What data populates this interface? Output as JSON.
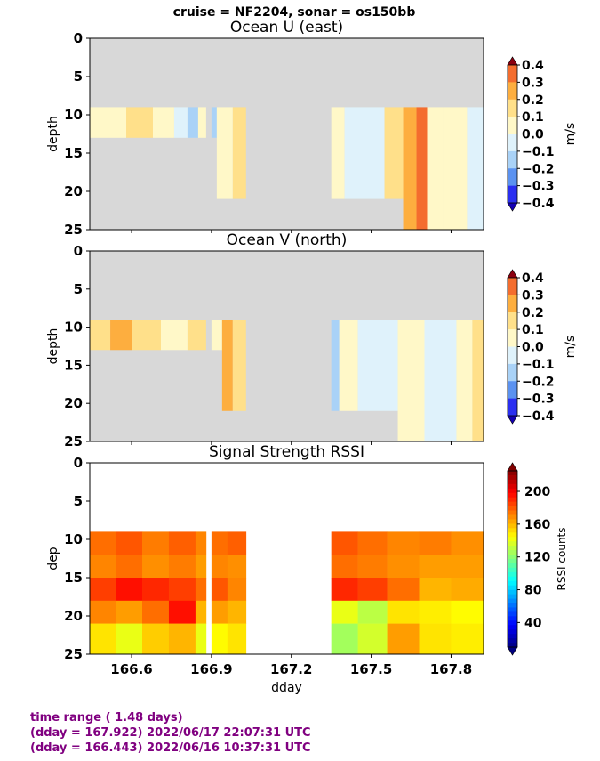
{
  "suptitle": "cruise = NF2204,  sonar = os150bb",
  "chart_data": [
    {
      "type": "heatmap",
      "title": "Ocean U (east)",
      "xlabel": "",
      "ylabel": "depth",
      "xlim": [
        166.443,
        167.922
      ],
      "ylim": [
        25,
        0
      ],
      "yticks": [
        "0",
        "5",
        "10",
        "15",
        "20",
        "25"
      ],
      "xticks": [
        "166.6",
        "166.9",
        "167.2",
        "167.5",
        "167.8"
      ],
      "colorbar": {
        "label": "m/s",
        "ticks": [
          "0.4",
          "0.3",
          "0.2",
          "0.1",
          "0.0",
          "−0.1",
          "−0.2",
          "−0.3",
          "−0.4"
        ],
        "colors": [
          "#d7191c",
          "#f46d2e",
          "#fdae3f",
          "#ffe08a",
          "#fff8c8",
          "#dff2fb",
          "#a9d2f7",
          "#5b92f0",
          "#2a2ff0",
          "#1400e6"
        ]
      },
      "nodata_color": "#d8d8d8",
      "columns": [
        {
          "x0": 166.443,
          "x1": 166.51,
          "top": 9,
          "bottom": 13,
          "value": 0.05
        },
        {
          "x0": 166.51,
          "x1": 166.58,
          "top": 9,
          "bottom": 13,
          "value": 0.08
        },
        {
          "x0": 166.58,
          "x1": 166.68,
          "top": 9,
          "bottom": 13,
          "value": 0.15
        },
        {
          "x0": 166.68,
          "x1": 166.76,
          "top": 9,
          "bottom": 13,
          "value": 0.1
        },
        {
          "x0": 166.76,
          "x1": 166.81,
          "top": 9,
          "bottom": 13,
          "value": -0.02
        },
        {
          "x0": 166.81,
          "x1": 166.85,
          "top": 9,
          "bottom": 13,
          "value": -0.15
        },
        {
          "x0": 166.85,
          "x1": 166.88,
          "top": 9,
          "bottom": 13,
          "value": 0.03
        },
        {
          "x0": 166.9,
          "x1": 166.92,
          "top": 9,
          "bottom": 13,
          "value": -0.15
        },
        {
          "x0": 166.92,
          "x1": 166.98,
          "top": 9,
          "bottom": 21,
          "value": 0.02
        },
        {
          "x0": 166.98,
          "x1": 167.03,
          "top": 9,
          "bottom": 21,
          "value": 0.15
        },
        {
          "x0": 167.35,
          "x1": 167.4,
          "top": 9,
          "bottom": 21,
          "value": 0.08
        },
        {
          "x0": 167.4,
          "x1": 167.55,
          "top": 9,
          "bottom": 21,
          "value": -0.05
        },
        {
          "x0": 167.55,
          "x1": 167.62,
          "top": 9,
          "bottom": 21,
          "value": 0.12
        },
        {
          "x0": 167.62,
          "x1": 167.67,
          "top": 9,
          "bottom": 25,
          "value": 0.22
        },
        {
          "x0": 167.67,
          "x1": 167.71,
          "top": 9,
          "bottom": 25,
          "value": 0.32
        },
        {
          "x0": 167.71,
          "x1": 167.77,
          "top": 9,
          "bottom": 25,
          "value": 0.08
        },
        {
          "x0": 167.77,
          "x1": 167.86,
          "top": 9,
          "bottom": 25,
          "value": 0.02
        },
        {
          "x0": 167.86,
          "x1": 167.922,
          "top": 9,
          "bottom": 25,
          "value": -0.02
        }
      ]
    },
    {
      "type": "heatmap",
      "title": "Ocean V (north)",
      "xlabel": "",
      "ylabel": "depth",
      "xlim": [
        166.443,
        167.922
      ],
      "ylim": [
        25,
        0
      ],
      "yticks": [
        "0",
        "5",
        "10",
        "15",
        "20",
        "25"
      ],
      "xticks": [
        "166.6",
        "166.9",
        "167.2",
        "167.5",
        "167.8"
      ],
      "colorbar": {
        "label": "m/s",
        "ticks": [
          "0.4",
          "0.3",
          "0.2",
          "0.1",
          "0.0",
          "−0.1",
          "−0.2",
          "−0.3",
          "−0.4"
        ],
        "colors": [
          "#d7191c",
          "#f46d2e",
          "#fdae3f",
          "#ffe08a",
          "#fff8c8",
          "#dff2fb",
          "#a9d2f7",
          "#5b92f0",
          "#2a2ff0",
          "#1400e6"
        ]
      },
      "nodata_color": "#d8d8d8",
      "columns": [
        {
          "x0": 166.443,
          "x1": 166.52,
          "top": 9,
          "bottom": 13,
          "value": 0.15
        },
        {
          "x0": 166.52,
          "x1": 166.6,
          "top": 9,
          "bottom": 13,
          "value": 0.22
        },
        {
          "x0": 166.6,
          "x1": 166.71,
          "top": 9,
          "bottom": 13,
          "value": 0.15
        },
        {
          "x0": 166.71,
          "x1": 166.81,
          "top": 9,
          "bottom": 13,
          "value": 0.05
        },
        {
          "x0": 166.81,
          "x1": 166.88,
          "top": 9,
          "bottom": 13,
          "value": 0.12
        },
        {
          "x0": 166.9,
          "x1": 166.94,
          "top": 9,
          "bottom": 13,
          "value": 0.1
        },
        {
          "x0": 166.94,
          "x1": 166.98,
          "top": 9,
          "bottom": 21,
          "value": 0.22
        },
        {
          "x0": 166.98,
          "x1": 167.03,
          "top": 9,
          "bottom": 21,
          "value": 0.15
        },
        {
          "x0": 167.35,
          "x1": 167.38,
          "top": 9,
          "bottom": 21,
          "value": -0.12
        },
        {
          "x0": 167.38,
          "x1": 167.45,
          "top": 9,
          "bottom": 21,
          "value": 0.05
        },
        {
          "x0": 167.45,
          "x1": 167.6,
          "top": 9,
          "bottom": 21,
          "value": -0.03
        },
        {
          "x0": 167.6,
          "x1": 167.7,
          "top": 9,
          "bottom": 25,
          "value": 0.06
        },
        {
          "x0": 167.7,
          "x1": 167.82,
          "top": 9,
          "bottom": 25,
          "value": -0.04
        },
        {
          "x0": 167.82,
          "x1": 167.88,
          "top": 9,
          "bottom": 25,
          "value": 0.1
        },
        {
          "x0": 167.88,
          "x1": 167.922,
          "top": 9,
          "bottom": 25,
          "value": 0.18
        }
      ]
    },
    {
      "type": "heatmap",
      "title": "Signal Strength RSSI",
      "xlabel": "dday",
      "ylabel": "dep",
      "xlim": [
        166.443,
        167.922
      ],
      "ylim": [
        25,
        0
      ],
      "yticks": [
        "0",
        "5",
        "10",
        "15",
        "20",
        "25"
      ],
      "xticks": [
        "166.6",
        "166.9",
        "167.2",
        "167.5",
        "167.8"
      ],
      "colorbar": {
        "label": "RSSI counts",
        "ticks": [
          "200",
          "160",
          "120",
          "80",
          "40"
        ],
        "range": [
          10,
          225
        ]
      },
      "depth_bins": [
        [
          9,
          12
        ],
        [
          12,
          15
        ],
        [
          15,
          18
        ],
        [
          18,
          21
        ],
        [
          21,
          25
        ]
      ],
      "columns": [
        {
          "x0": 166.443,
          "x1": 166.54,
          "values": [
            175,
            170,
            185,
            170,
            150
          ]
        },
        {
          "x0": 166.54,
          "x1": 166.64,
          "values": [
            180,
            175,
            195,
            165,
            140
          ]
        },
        {
          "x0": 166.64,
          "x1": 166.74,
          "values": [
            172,
            168,
            190,
            175,
            155
          ]
        },
        {
          "x0": 166.74,
          "x1": 166.84,
          "values": [
            178,
            172,
            185,
            195,
            160
          ]
        },
        {
          "x0": 166.84,
          "x1": 166.88,
          "values": [
            170,
            165,
            175,
            160,
            140
          ]
        },
        {
          "x0": 166.9,
          "x1": 166.96,
          "values": [
            175,
            170,
            180,
            165,
            145
          ]
        },
        {
          "x0": 166.96,
          "x1": 167.03,
          "values": [
            178,
            168,
            170,
            160,
            150
          ]
        },
        {
          "x0": 167.35,
          "x1": 167.45,
          "values": [
            180,
            175,
            190,
            140,
            125
          ]
        },
        {
          "x0": 167.45,
          "x1": 167.56,
          "values": [
            175,
            172,
            185,
            130,
            135
          ]
        },
        {
          "x0": 167.56,
          "x1": 167.68,
          "values": [
            170,
            168,
            175,
            150,
            165
          ]
        },
        {
          "x0": 167.68,
          "x1": 167.8,
          "values": [
            172,
            165,
            160,
            148,
            150
          ]
        },
        {
          "x0": 167.8,
          "x1": 167.922,
          "values": [
            168,
            165,
            162,
            145,
            148
          ]
        }
      ]
    }
  ],
  "footer": {
    "line1": "time range ( 1.48 days)",
    "line2": "(dday = 167.922) 2022/06/17 22:07:31 UTC",
    "line3": "(dday = 166.443) 2022/06/16 10:37:31 UTC"
  }
}
